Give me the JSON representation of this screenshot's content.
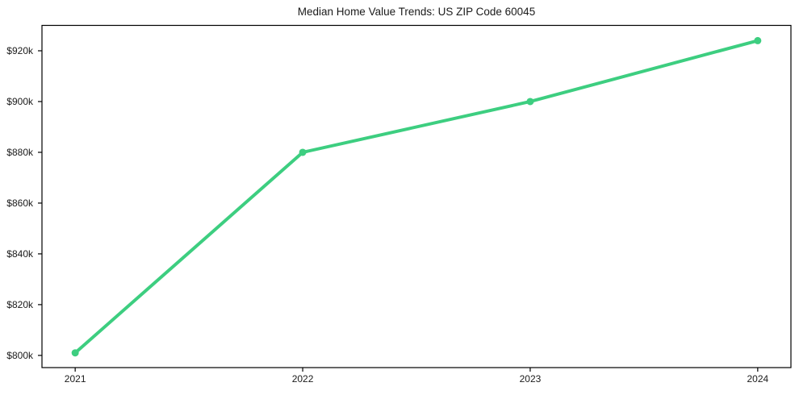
{
  "chart_data": {
    "type": "line",
    "title": "Median Home Value Trends: US ZIP Code 60045",
    "categories": [
      "2021",
      "2022",
      "2023",
      "2024"
    ],
    "x_values": [
      2021,
      2022,
      2023,
      2024
    ],
    "values": [
      801,
      880,
      900,
      924
    ],
    "values_unit": "thousand USD",
    "series_name": "Median home value",
    "y_tick_values": [
      800,
      820,
      840,
      860,
      880,
      900,
      920
    ],
    "y_tick_labels": [
      "$800k",
      "$820k",
      "$840k",
      "$860k",
      "$880k",
      "$900k",
      "$920k"
    ],
    "ylim_k_usd": [
      795.2,
      930
    ],
    "xlim_years": [
      2020.854,
      2024.146
    ],
    "grid": false,
    "legend": "none",
    "marker": "circle",
    "line_color": "#3dce80",
    "axis_color": "#000000",
    "text_color": "#1a1a1a",
    "background_color": "#ffffff"
  }
}
